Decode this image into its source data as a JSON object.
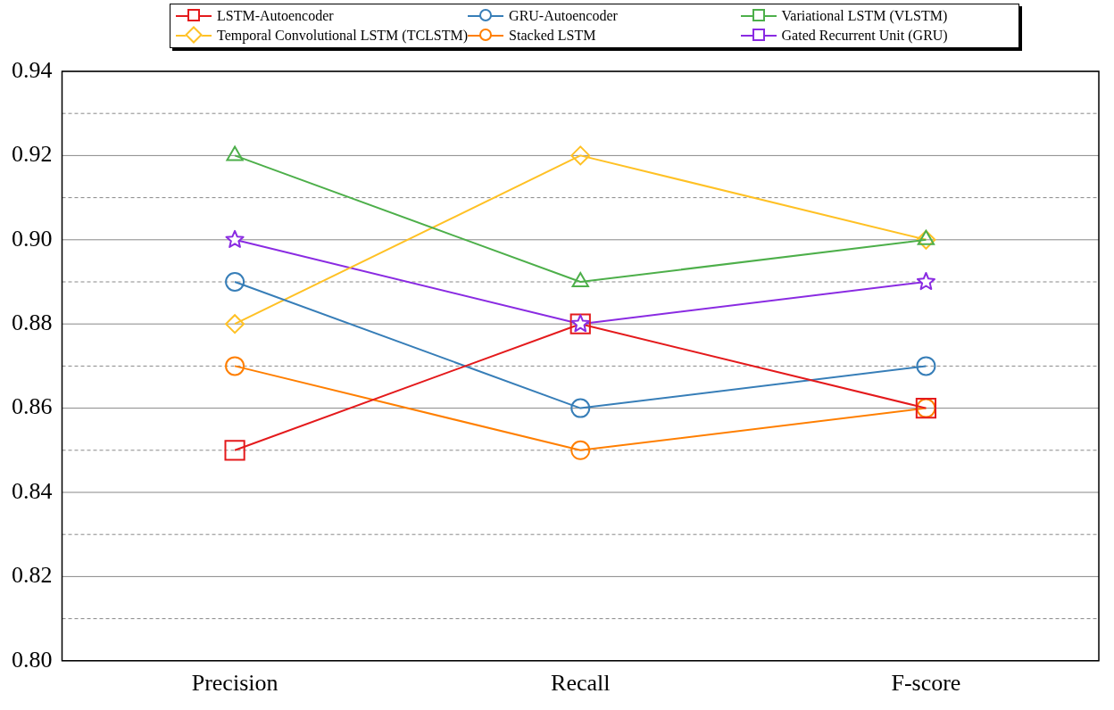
{
  "chart_data": {
    "type": "line",
    "categories": [
      "Precision",
      "Recall",
      "F-score"
    ],
    "ylim": [
      0.8,
      0.94
    ],
    "yticks": [
      {
        "value": 0.8,
        "label": "0.80"
      },
      {
        "value": 0.81,
        "label": null
      },
      {
        "value": 0.82,
        "label": "0.82"
      },
      {
        "value": 0.83,
        "label": null
      },
      {
        "value": 0.84,
        "label": "0.84"
      },
      {
        "value": 0.85,
        "label": null
      },
      {
        "value": 0.86,
        "label": "0.86"
      },
      {
        "value": 0.87,
        "label": null
      },
      {
        "value": 0.88,
        "label": "0.88"
      },
      {
        "value": 0.89,
        "label": null
      },
      {
        "value": 0.9,
        "label": "0.90"
      },
      {
        "value": 0.91,
        "label": null
      },
      {
        "value": 0.92,
        "label": "0.92"
      },
      {
        "value": 0.93,
        "label": null
      },
      {
        "value": 0.94,
        "label": "0.94"
      }
    ],
    "grid": "y",
    "legend": "top",
    "line_style": "solid",
    "series": [
      {
        "name": "LSTM-Autoencoder",
        "color": "#e41a1c",
        "marker": "square",
        "values": [
          0.85,
          0.88,
          0.86
        ]
      },
      {
        "name": "GRU-Autoencoder",
        "color": "#377eb8",
        "marker": "circle",
        "values": [
          0.89,
          0.86,
          0.87
        ]
      },
      {
        "name": "Variational LSTM (VLSTM)",
        "color": "#4daf4a",
        "marker": "triangle",
        "values": [
          0.92,
          0.89,
          0.9
        ]
      },
      {
        "name": "Temporal Convolutional LSTM (TCLSTM)",
        "color": "#ffc125",
        "marker": "diamond",
        "values": [
          0.88,
          0.92,
          0.9
        ]
      },
      {
        "name": "Stacked LSTM",
        "color": "#ff7f00",
        "marker": "circle",
        "values": [
          0.87,
          0.85,
          0.86
        ]
      },
      {
        "name": "Gated Recurrent Unit (GRU)",
        "color": "#8a2be2",
        "marker": "star",
        "values": [
          0.9,
          0.88,
          0.89
        ]
      }
    ]
  }
}
